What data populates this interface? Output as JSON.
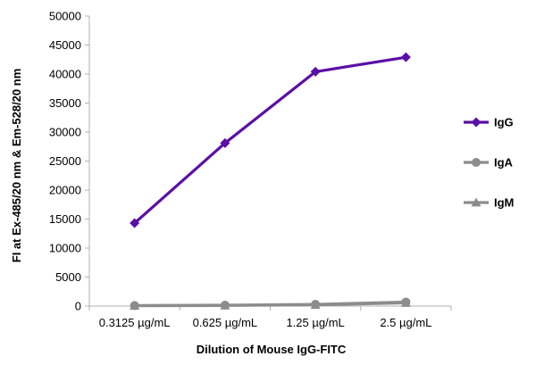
{
  "chart_data": {
    "type": "line",
    "title": "",
    "xlabel": "Dilution of Mouse IgG-FITC",
    "ylabel": "FI at Ex-485/20 nm & Em-528/20 nm",
    "categories": [
      "0.3125 µg/mL",
      "0.625 µg/mL",
      "1.25 µg/mL",
      "2.5 µg/mL"
    ],
    "ylim": [
      0,
      50000
    ],
    "yticks": [
      0,
      5000,
      10000,
      15000,
      20000,
      25000,
      30000,
      35000,
      40000,
      45000,
      50000
    ],
    "grid": false,
    "legend": "right",
    "series": [
      {
        "name": "IgG",
        "values": [
          14300,
          28100,
          40400,
          42900
        ],
        "color": "#5b0fa6",
        "marker": "diamond"
      },
      {
        "name": "IgA",
        "values": [
          100,
          150,
          300,
          700
        ],
        "color": "#8c8c8c",
        "marker": "circle"
      },
      {
        "name": "IgM",
        "values": [
          50,
          100,
          200,
          550
        ],
        "color": "#8c8c8c",
        "marker": "triangle"
      }
    ]
  }
}
